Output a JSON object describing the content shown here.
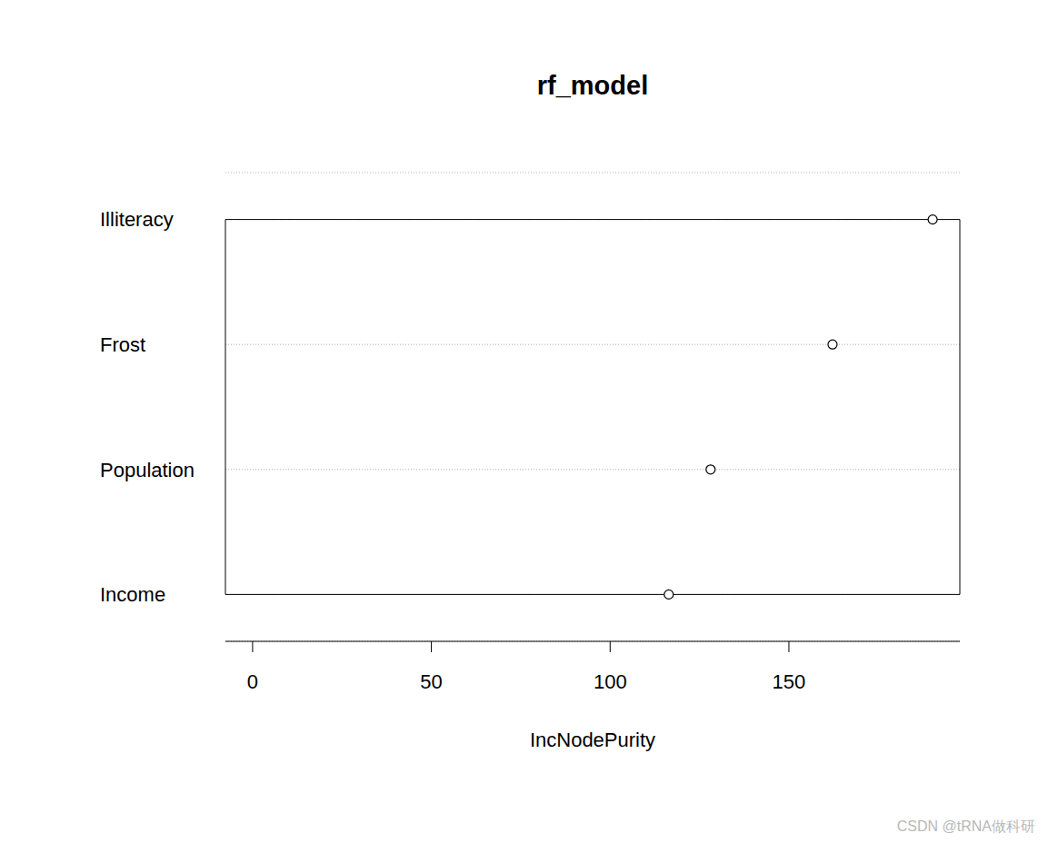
{
  "chart_data": {
    "type": "dot",
    "title": "rf_model",
    "x_label": "IncNodePurity",
    "categories": [
      "Illiteracy",
      "Frost",
      "Population",
      "Income"
    ],
    "values": [
      190.2,
      162.2,
      128.1,
      116.4
    ],
    "xlim": [
      -7.6,
      197.8
    ],
    "xticks": [
      0,
      50,
      100,
      150
    ],
    "orientation": "horizontal",
    "grid": true,
    "marker": "circle",
    "color": "#000000",
    "annotations": [
      "CSDN @tRNA做科研"
    ]
  }
}
